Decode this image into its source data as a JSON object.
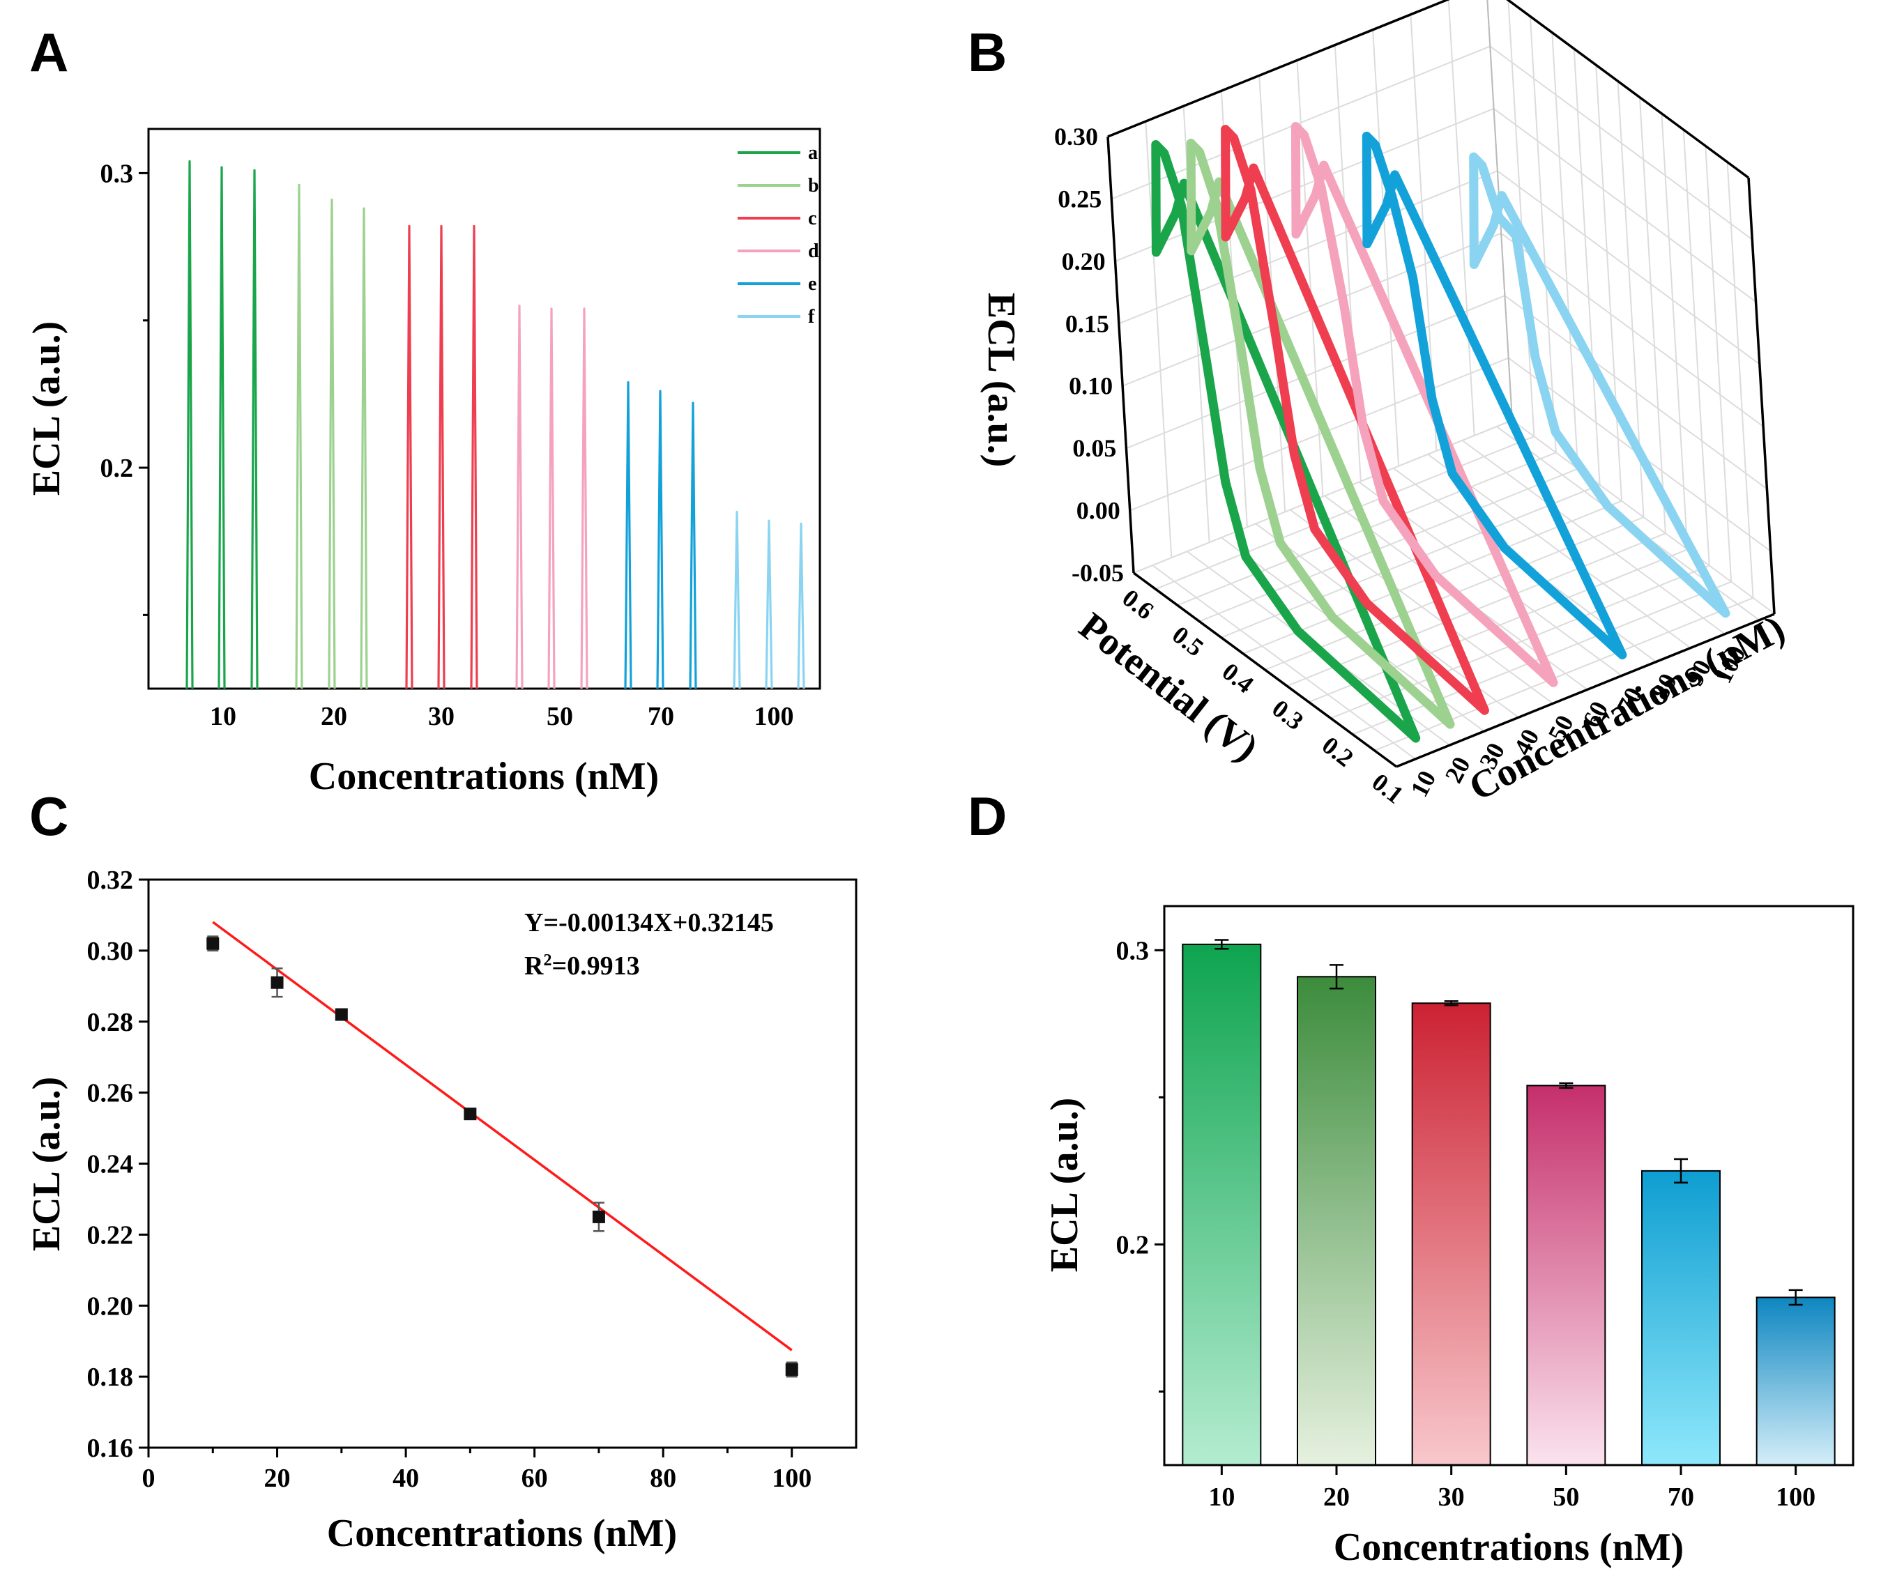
{
  "panels": {
    "a": "A",
    "b": "B",
    "c": "C",
    "d": "D"
  },
  "colors": {
    "a": "#1aa54b",
    "b": "#9dd18f",
    "c": "#ee3e50",
    "d": "#f5a3bd",
    "e": "#12a2d9",
    "f": "#8ad4f2",
    "fit": "#ff1a1a",
    "point": "#111111"
  },
  "chart_data": [
    {
      "panel": "A",
      "type": "line",
      "title": "",
      "xlabel": "Concentrations (nM)",
      "ylabel": "ECL (a.u.)",
      "categories": [
        "10",
        "20",
        "30",
        "50",
        "70",
        "100"
      ],
      "ylim": [
        0.125,
        0.315
      ],
      "yticks": [
        0.2,
        0.3
      ],
      "ytick_labels": [
        "0.2",
        "0.3"
      ],
      "legend": [
        "a",
        "b",
        "c",
        "d",
        "e",
        "f"
      ],
      "legend_position": "top-right",
      "series": [
        {
          "name": "a",
          "color_key": "a",
          "peaks": [
            0.304,
            0.302,
            0.301
          ]
        },
        {
          "name": "b",
          "color_key": "b",
          "peaks": [
            0.296,
            0.291,
            0.288
          ]
        },
        {
          "name": "c",
          "color_key": "c",
          "peaks": [
            0.282,
            0.282,
            0.282
          ]
        },
        {
          "name": "d",
          "color_key": "d",
          "peaks": [
            0.255,
            0.254,
            0.254
          ]
        },
        {
          "name": "e",
          "color_key": "e",
          "peaks": [
            0.229,
            0.226,
            0.222
          ]
        },
        {
          "name": "f",
          "color_key": "f",
          "peaks": [
            0.185,
            0.182,
            0.181
          ]
        }
      ]
    },
    {
      "panel": "B",
      "type": "line",
      "title": "",
      "zlabel": "ECL (a.u.)",
      "potential_label": "Potential (V)",
      "conc_label": "Concentrations (nM)",
      "zticks": [
        "0.30",
        "0.25",
        "0.20",
        "0.15",
        "0.10",
        "0.05",
        "0.00",
        "-0.05"
      ],
      "zlim": [
        -0.05,
        0.3
      ],
      "potential_ticks": [
        "0.6",
        "0.5",
        "0.4",
        "0.3",
        "0.2",
        "0.1"
      ],
      "conc_ticks": [
        "10",
        "20",
        "30",
        "40",
        "50",
        "60",
        "70",
        "80",
        "90",
        "100"
      ],
      "series": [
        {
          "name": "10 nM",
          "concentration": 10,
          "color_key": "a",
          "peak": 0.29
        },
        {
          "name": "20 nM",
          "concentration": 20,
          "color_key": "b",
          "peak": 0.28
        },
        {
          "name": "30 nM",
          "concentration": 30,
          "color_key": "c",
          "peak": 0.28
        },
        {
          "name": "50 nM",
          "concentration": 50,
          "color_key": "d",
          "peak": 0.26
        },
        {
          "name": "70 nM",
          "concentration": 70,
          "color_key": "e",
          "peak": 0.23
        },
        {
          "name": "100 nM",
          "concentration": 100,
          "color_key": "f",
          "peak": 0.18
        }
      ]
    },
    {
      "panel": "C",
      "type": "scatter",
      "title": "",
      "xlabel": "Concentrations (nM)",
      "ylabel": "ECL (a.u.)",
      "xlim": [
        0,
        110
      ],
      "ylim": [
        0.16,
        0.32
      ],
      "xticks": [
        0,
        20,
        40,
        60,
        80,
        100
      ],
      "xtick_labels": [
        "0",
        "20",
        "40",
        "60",
        "80",
        "100"
      ],
      "yticks": [
        0.16,
        0.18,
        0.2,
        0.22,
        0.24,
        0.26,
        0.28,
        0.3,
        0.32
      ],
      "ytick_labels": [
        "0.16",
        "0.18",
        "0.20",
        "0.22",
        "0.24",
        "0.26",
        "0.28",
        "0.30",
        "0.32"
      ],
      "x": [
        10,
        20,
        30,
        50,
        70,
        100
      ],
      "y": [
        0.302,
        0.291,
        0.282,
        0.254,
        0.225,
        0.182
      ],
      "err": [
        0.002,
        0.004,
        0.001,
        0.001,
        0.004,
        0.002
      ],
      "fit": {
        "slope": -0.00134,
        "intercept": 0.32145,
        "x_range": [
          10,
          100
        ]
      },
      "equation": "Y=-0.00134X+0.32145",
      "r2_prefix": "R",
      "r2_sup": "2",
      "r2_value": "=0.9913"
    },
    {
      "panel": "D",
      "type": "bar",
      "title": "",
      "xlabel": "Concentrations (nM)",
      "ylabel": "ECL (a.u.)",
      "categories": [
        "10",
        "20",
        "30",
        "50",
        "70",
        "100"
      ],
      "values": [
        0.302,
        0.291,
        0.282,
        0.254,
        0.225,
        0.182
      ],
      "err": [
        0.0015,
        0.004,
        0.0007,
        0.0008,
        0.004,
        0.0025
      ],
      "ylim": [
        0.125,
        0.315
      ],
      "yticks": [
        0.2,
        0.3
      ],
      "ytick_labels": [
        "0.2",
        "0.3"
      ],
      "bar_colors": [
        [
          "#0ea44f",
          "#b4ecd0"
        ],
        [
          "#3c8c3c",
          "#e6f1df"
        ],
        [
          "#cc2233",
          "#f8c8cc"
        ],
        [
          "#c52f6b",
          "#fbe3ee"
        ],
        [
          "#0e9ed1",
          "#8fe8fb"
        ],
        [
          "#0e86c0",
          "#d4eef9"
        ]
      ]
    }
  ]
}
